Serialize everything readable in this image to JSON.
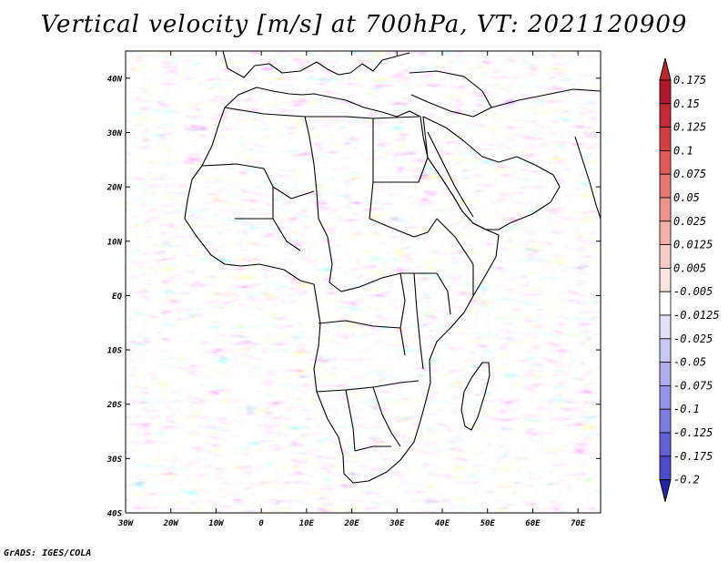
{
  "title": "Vertical velocity [m/s] at 700hPa, VT: 2021120909",
  "footer": "GrADS: IGES/COLA",
  "map": {
    "projection": "lat-lon",
    "lon_range": [
      -30,
      75
    ],
    "lat_range": [
      -40,
      45
    ],
    "lat_ticks": [
      {
        "value": 40,
        "label": "40N"
      },
      {
        "value": 30,
        "label": "30N"
      },
      {
        "value": 20,
        "label": "20N"
      },
      {
        "value": 10,
        "label": "10N"
      },
      {
        "value": 0,
        "label": "EQ"
      },
      {
        "value": -10,
        "label": "10S"
      },
      {
        "value": -20,
        "label": "20S"
      },
      {
        "value": -30,
        "label": "30S"
      },
      {
        "value": -40,
        "label": "40S"
      }
    ],
    "lon_ticks": [
      {
        "value": -30,
        "label": "30W"
      },
      {
        "value": -20,
        "label": "20W"
      },
      {
        "value": -10,
        "label": "10W"
      },
      {
        "value": 0,
        "label": "0"
      },
      {
        "value": 10,
        "label": "10E"
      },
      {
        "value": 20,
        "label": "20E"
      },
      {
        "value": 30,
        "label": "30E"
      },
      {
        "value": 40,
        "label": "40E"
      },
      {
        "value": 50,
        "label": "50E"
      },
      {
        "value": 60,
        "label": "60E"
      },
      {
        "value": 70,
        "label": "70E"
      }
    ]
  },
  "colorbar": {
    "levels": [
      {
        "label": "0.175",
        "color": "#b2182b"
      },
      {
        "label": "0.15",
        "color": "#c42a33"
      },
      {
        "label": "0.125",
        "color": "#d43f3f"
      },
      {
        "label": "0.1",
        "color": "#e05a55"
      },
      {
        "label": "0.075",
        "color": "#e8776f"
      },
      {
        "label": "0.05",
        "color": "#ef938a"
      },
      {
        "label": "0.025",
        "color": "#f4afa7"
      },
      {
        "label": "0.0125",
        "color": "#f8cbc5"
      },
      {
        "label": "0.005",
        "color": "#fbe3df"
      },
      {
        "label": "-0.005",
        "color": "#ffffff"
      },
      {
        "label": "-0.0125",
        "color": "#e2e2fa"
      },
      {
        "label": "-0.025",
        "color": "#c8c8f5"
      },
      {
        "label": "-0.05",
        "color": "#aeaeef"
      },
      {
        "label": "-0.075",
        "color": "#9595e8"
      },
      {
        "label": "-0.1",
        "color": "#7b7be0"
      },
      {
        "label": "-0.125",
        "color": "#6262d6"
      },
      {
        "label": "-0.175",
        "color": "#4a4acb"
      },
      {
        "label": "-0.2",
        "color": "#3434be"
      }
    ],
    "top_triangle_color": "#c0272d",
    "bottom_triangle_color": "#2323a8"
  }
}
